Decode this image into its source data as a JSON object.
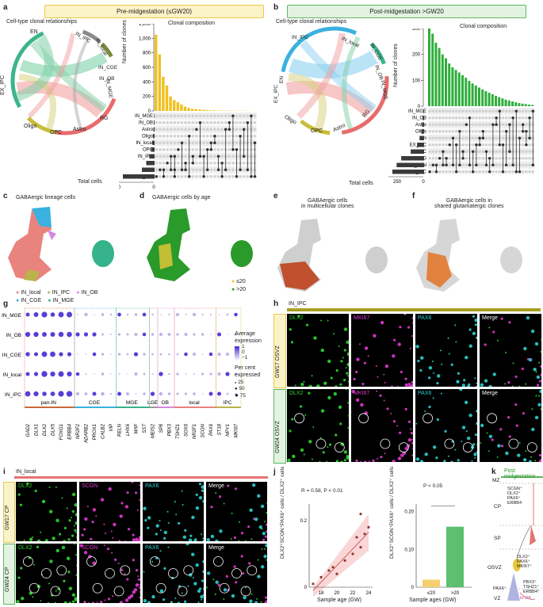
{
  "panels": {
    "a": {
      "letter": "a",
      "header": "Pre-midgestation (≤GW20)",
      "chord_title": "Cell-type clonal relationships",
      "bar_title": "Clonal composition",
      "ylabel": "Number of clones",
      "xlabel": "Total cells",
      "chord_labels": [
        "EN",
        "IN_IPC",
        "IN_local",
        "IN_CGE",
        "IN_OB",
        "IN_MGE",
        "RG",
        "Astro",
        "OPC",
        "Oligo",
        "EX_IPC"
      ]
    },
    "b": {
      "letter": "b",
      "header": "Post-midgestation >GW20",
      "chord_title": "Cell-type clonal relationships",
      "bar_title": "Clonal composition",
      "ylabel": "Number of clones",
      "xlabel": "Total cells",
      "chord_labels": [
        "IN_IPC",
        "IN_local",
        "IN_CGE",
        "IN_OB",
        "IN_MGE",
        "RG",
        "Astro",
        "OPC",
        "Oligo",
        "EX_IPC",
        "EN"
      ]
    },
    "c": {
      "letter": "c",
      "title": "GABAergic lineage cells",
      "legend": [
        {
          "name": "IN_local",
          "color": "#e8837e"
        },
        {
          "name": "IN_IPC",
          "color": "#b9b34a"
        },
        {
          "name": "IN_OB",
          "color": "#d689e0"
        },
        {
          "name": "IN_CGE",
          "color": "#3ab1e0"
        },
        {
          "name": "IN_MGE",
          "color": "#36b38a"
        }
      ]
    },
    "d": {
      "letter": "d",
      "title": "GABAergic cells by age",
      "legend": [
        {
          "name": "≤20",
          "color": "#e8c83a"
        },
        {
          "name": ">20",
          "color": "#2a9a2a"
        }
      ]
    },
    "e": {
      "letter": "e",
      "title_lines": [
        "GABAergic cells",
        "in multicellular clones"
      ]
    },
    "f": {
      "letter": "f",
      "title_lines": [
        "GABAergic cells in",
        "shared glutamatergic clones"
      ]
    },
    "g": {
      "letter": "g",
      "rows": [
        "IN_MGE",
        "IN_OB",
        "IN_CGE",
        "IN_local",
        "IN_IPC"
      ],
      "genes": [
        "GAD2",
        "DLX1",
        "DLX2",
        "DLX5",
        "FOXG1",
        "ERBB4",
        "NR2F2",
        "ADARB2",
        "PROX1",
        "CALB2",
        "VIP",
        "RELN",
        "LHX6",
        "MAF",
        "SST",
        "MEIS2",
        "SP8",
        "PBX3",
        "TSHZ1",
        "SOX6",
        "NR2F1",
        "SCGN",
        "PAX6",
        "ST18",
        "NPY1",
        "MKI67"
      ],
      "groups": [
        "pan-IN",
        "CGE",
        "MGE",
        "LGE",
        "OB",
        "local",
        "IPC"
      ],
      "legend_title1": "Average",
      "legend_title2": "expression",
      "scale_vals": [
        "1",
        "0",
        "−1"
      ],
      "legend_title3": "Per cent",
      "legend_title4": "expressed",
      "size_vals": [
        "25",
        "50",
        "75"
      ]
    },
    "h": {
      "letter": "h",
      "header": "IN_IPC",
      "row1": "GW17 OSVZ",
      "row2": "GW24 OSVZ",
      "channels": [
        "DLX2",
        "MKI67",
        "PAX6",
        "Merge"
      ]
    },
    "i": {
      "letter": "i",
      "header": "IN_local",
      "row1": "GW17 CP",
      "row2": "GW24 CP",
      "channels": [
        "DLX2",
        "SCGN",
        "PAX6",
        "Merge"
      ]
    },
    "j": {
      "letter": "j",
      "ylabel": "DLX2⁺SCGN⁺PAX6⁺ cells / DLX2⁺ cells",
      "stat_left": "R = 0.58, P < 0.01",
      "stat_right": "P < 0.05",
      "xlabel_left": "Sample age (GW)",
      "xlabel_right": "Sample ages (GW)"
    },
    "k": {
      "letter": "k",
      "title": "Post midgestation",
      "zones": [
        "MZ",
        "CP",
        "SP",
        "OSVZ",
        "VZ"
      ],
      "marker1": [
        "SCGN⁺",
        "DLX2⁺",
        "PAX6⁺",
        "ERBB4"
      ],
      "marker2": [
        "DLX2⁺",
        "PAX6⁺",
        "MKI67⁺"
      ],
      "marker3": [
        "PBX3⁺",
        "TSHZ1⁺",
        "ERBB4⁺"
      ],
      "pax6": "PAX6⁺",
      "toob": "to OB"
    }
  },
  "chart_data": [
    {
      "type": "bar",
      "id": "a-clonal-composition",
      "title": "Clonal composition",
      "ylabel": "Number of clones",
      "ylim": [
        0,
        1200
      ],
      "yticks": [
        "0",
        "200",
        "400",
        "600",
        "800",
        "1,000",
        "1,200"
      ],
      "values": [
        1050,
        780,
        470,
        350,
        200,
        150,
        120,
        90,
        60,
        40,
        30,
        25,
        20,
        15,
        12,
        10,
        8,
        6,
        5,
        5,
        4,
        3,
        3,
        2,
        2,
        2,
        1,
        1
      ]
    },
    {
      "type": "bar",
      "id": "a-total-cells",
      "orientation": "horizontal",
      "xlabel": "Total cells",
      "categories": [
        "IN_MGE",
        "IN_OB",
        "Astro",
        "Oligo",
        "IN_local",
        "OPC",
        "IN_IPC",
        "RG",
        "EN",
        "EX_IPC"
      ],
      "values": [
        40,
        60,
        90,
        120,
        160,
        280,
        420,
        650,
        1000,
        2500
      ],
      "xticks": [
        "2,000",
        "1,000",
        "0"
      ]
    },
    {
      "type": "bar",
      "id": "b-clonal-composition",
      "title": "Clonal composition",
      "ylabel": "Number of clones",
      "ylim": [
        0,
        300
      ],
      "yticks": [
        "0",
        "100",
        "200",
        "300"
      ],
      "values": [
        305,
        280,
        245,
        225,
        200,
        185,
        165,
        150,
        140,
        130,
        120,
        110,
        98,
        88,
        80,
        72,
        65,
        58,
        52,
        46,
        40,
        35,
        30,
        25,
        22,
        18,
        15,
        12,
        10,
        8,
        6,
        5
      ]
    },
    {
      "type": "bar",
      "id": "b-total-cells",
      "orientation": "horizontal",
      "xlabel": "Total cells",
      "categories": [
        "IN_MGE",
        "IN_OB",
        "Astro",
        "Oligo",
        "EN",
        "EX_IPC",
        "OPC",
        "RG",
        "IN_local",
        "IN_IPC"
      ],
      "values": [
        20,
        40,
        60,
        80,
        130,
        200,
        380,
        650,
        780,
        900
      ],
      "xticks": [
        "750",
        "500",
        "250",
        "0"
      ]
    },
    {
      "type": "scatter",
      "id": "j-left",
      "xlabel": "Sample age (GW)",
      "xticks": [
        "18",
        "20",
        "22",
        "24"
      ],
      "yticks": [
        "0",
        "0.2"
      ],
      "x": [
        17,
        18,
        19,
        19.5,
        20,
        21,
        22,
        22.5,
        23,
        23,
        23.5,
        24
      ],
      "y": [
        0.01,
        0.03,
        0.05,
        0.06,
        0.04,
        0.08,
        0.1,
        0.15,
        0.22,
        0.12,
        0.16,
        0.18
      ]
    },
    {
      "type": "bar",
      "id": "j-right",
      "categories": [
        "≤20",
        ">20"
      ],
      "values": [
        0.02,
        0.16
      ],
      "yticks": [
        "0",
        "0.10",
        "0.20"
      ],
      "xlabel": "Sample ages (GW)"
    }
  ]
}
